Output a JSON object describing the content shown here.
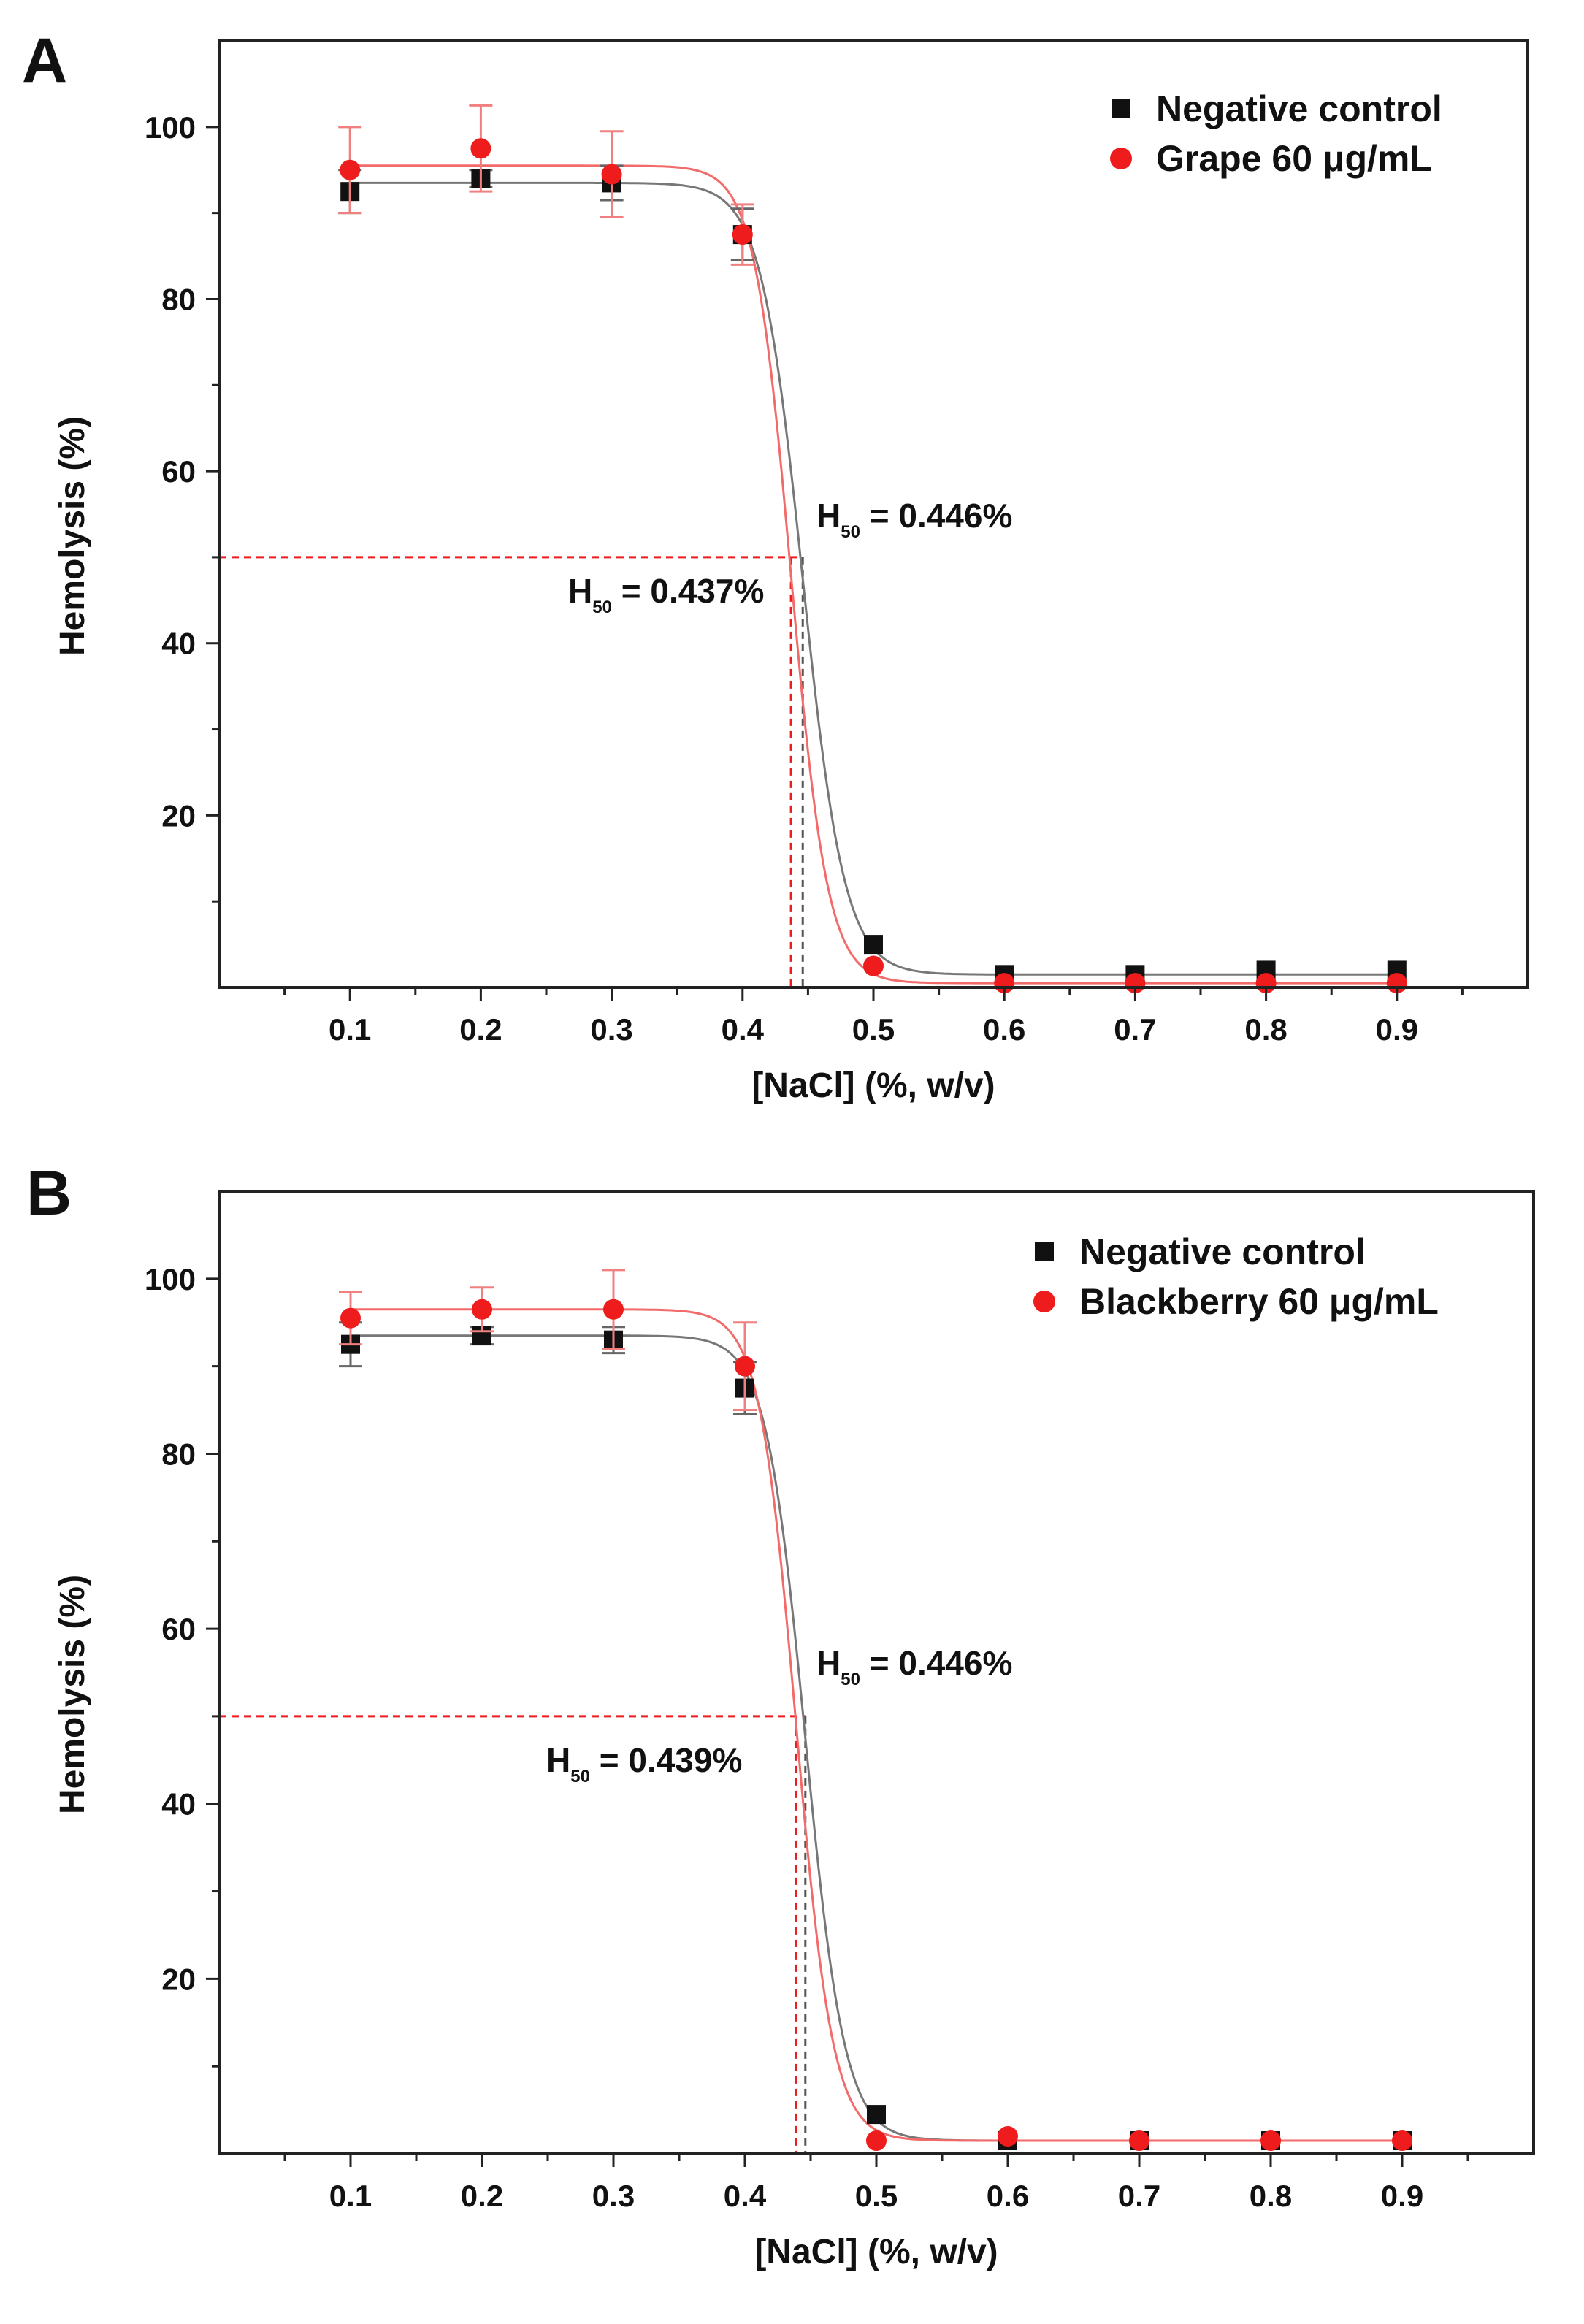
{
  "chart_data": [
    {
      "panel_label": "A",
      "type": "scatter",
      "xlabel": "[NaCl] (%, w/v)",
      "ylabel": "Hemolysis (%)",
      "xlim": [
        0,
        1.0
      ],
      "ylim": [
        0,
        110
      ],
      "x_ticks": [
        "0.1",
        "0.2",
        "0.3",
        "0.4",
        "0.5",
        "0.6",
        "0.7",
        "0.8",
        "0.9"
      ],
      "y_ticks": [
        "20",
        "40",
        "60",
        "80",
        "100"
      ],
      "legend_position": "top-right",
      "series": [
        {
          "name": "Negative control",
          "color": "#111111",
          "marker": "square",
          "x": [
            0.1,
            0.2,
            0.3,
            0.4,
            0.5,
            0.6,
            0.7,
            0.8,
            0.9
          ],
          "y": [
            92.5,
            94,
            93.5,
            87.5,
            5,
            1.5,
            1.5,
            2,
            2
          ],
          "error": [
            2.5,
            1,
            2,
            3,
            0.5,
            0.3,
            0.3,
            0.5,
            0.5
          ],
          "fit": {
            "top": 93.5,
            "bottom": 1.5,
            "x50": 0.446,
            "k": 0.016
          }
        },
        {
          "name": "Grape 60 μg/mL",
          "color": "#ee1c1c",
          "marker": "circle",
          "x": [
            0.1,
            0.2,
            0.3,
            0.4,
            0.5,
            0.6,
            0.7,
            0.8,
            0.9
          ],
          "y": [
            95,
            97.5,
            94.5,
            87.5,
            2.5,
            0.5,
            0.5,
            0.5,
            0.5
          ],
          "error": [
            5,
            5,
            5,
            3.5,
            0.5,
            0.3,
            0.3,
            0.3,
            0.3
          ],
          "fit": {
            "top": 95.5,
            "bottom": 0.5,
            "x50": 0.437,
            "k": 0.014
          }
        }
      ],
      "annotations": [
        {
          "label": "H",
          "sub": "50",
          "text": " = 0.446%"
        },
        {
          "label": "H",
          "sub": "50",
          "text": " = 0.437%"
        }
      ],
      "reference_level": 50
    },
    {
      "panel_label": "B",
      "type": "scatter",
      "xlabel": "[NaCl] (%, w/v)",
      "ylabel": "Hemolysis (%)",
      "xlim": [
        0,
        1.0
      ],
      "ylim": [
        0,
        110
      ],
      "x_ticks": [
        "0.1",
        "0.2",
        "0.3",
        "0.4",
        "0.5",
        "0.6",
        "0.7",
        "0.8",
        "0.9"
      ],
      "y_ticks": [
        "20",
        "40",
        "60",
        "80",
        "100"
      ],
      "legend_position": "top-right",
      "series": [
        {
          "name": "Negative control",
          "color": "#111111",
          "marker": "square",
          "x": [
            0.1,
            0.2,
            0.3,
            0.4,
            0.5,
            0.6,
            0.7,
            0.8,
            0.9
          ],
          "y": [
            92.5,
            93.5,
            93,
            87.5,
            4.5,
            1.5,
            1.5,
            1.5,
            1.5
          ],
          "error": [
            2.5,
            1,
            1.5,
            3,
            0.5,
            0.3,
            0.3,
            0.3,
            0.3
          ],
          "fit": {
            "top": 93.5,
            "bottom": 1.5,
            "x50": 0.446,
            "k": 0.015
          }
        },
        {
          "name": "Blackberry 60 μg/mL",
          "color": "#ee1c1c",
          "marker": "circle",
          "x": [
            0.1,
            0.2,
            0.3,
            0.4,
            0.5,
            0.6,
            0.7,
            0.8,
            0.9
          ],
          "y": [
            95.5,
            96.5,
            96.5,
            90,
            1.5,
            2,
            1.5,
            1.5,
            1.5
          ],
          "error": [
            3,
            2.5,
            4.5,
            5,
            0.5,
            0.5,
            0.3,
            0.3,
            0.3
          ],
          "fit": {
            "top": 96.5,
            "bottom": 1.5,
            "x50": 0.439,
            "k": 0.014
          }
        }
      ],
      "annotations": [
        {
          "label": "H",
          "sub": "50",
          "text": " = 0.446%"
        },
        {
          "label": "H",
          "sub": "50",
          "text": " = 0.439%"
        }
      ],
      "reference_level": 50
    }
  ]
}
